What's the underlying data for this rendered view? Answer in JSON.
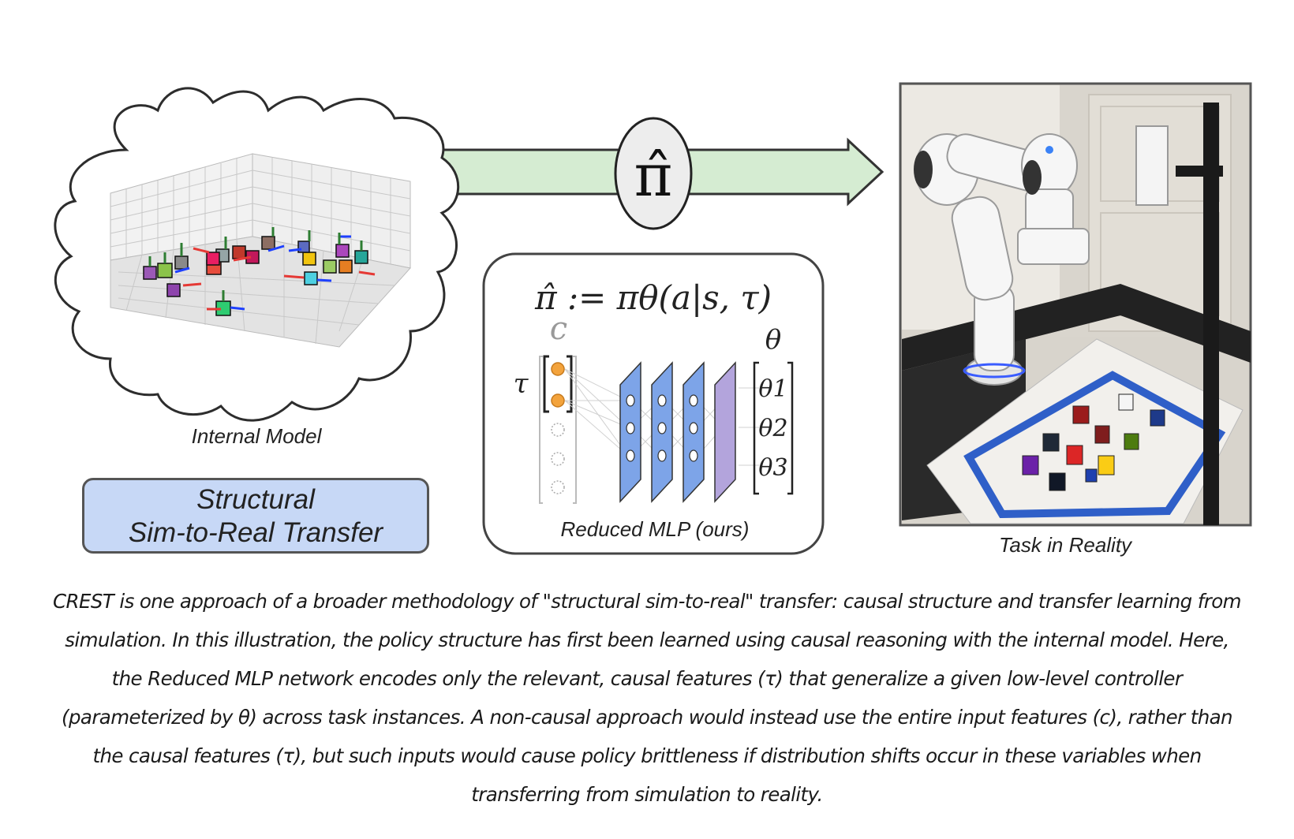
{
  "figure": {
    "policy_symbol": "π̂",
    "internal_model_label": "Internal Model",
    "task_label": "Task in Reality",
    "structural_box": {
      "line1": "Structural",
      "line2": "Sim-to-Real Transfer"
    },
    "policy_box": {
      "equation": "π̂ := πθ(a|s, τ)",
      "c_label": "c",
      "tau_label": "τ",
      "theta_label": "θ",
      "theta_outputs": [
        "θ1",
        "θ2",
        "θ3"
      ],
      "network_label": "Reduced MLP (ours)"
    },
    "colors": {
      "arrow_fill": "#d5ecd2",
      "cloud_stroke": "#333333",
      "layer_blue": "#7da4e8",
      "layer_purple": "#b3a4dc",
      "input_active": "#f3a33c",
      "box_blue": "#c7d8f6"
    }
  },
  "caption": "CREST is one approach of a broader methodology of \"structural sim-to-real\" transfer: causal structure and transfer learning from simulation. In this illustration, the policy structure has first been learned using causal reasoning with the internal model. Here, the Reduced MLP network encodes only the relevant, causal features (τ) that generalize a given low-level controller (parameterized by θ) across task instances. A non-causal approach would instead use the entire input features (c), rather than the causal features (τ), but such inputs would cause policy brittleness if distribution shifts occur in these variables when transferring from simulation to reality."
}
